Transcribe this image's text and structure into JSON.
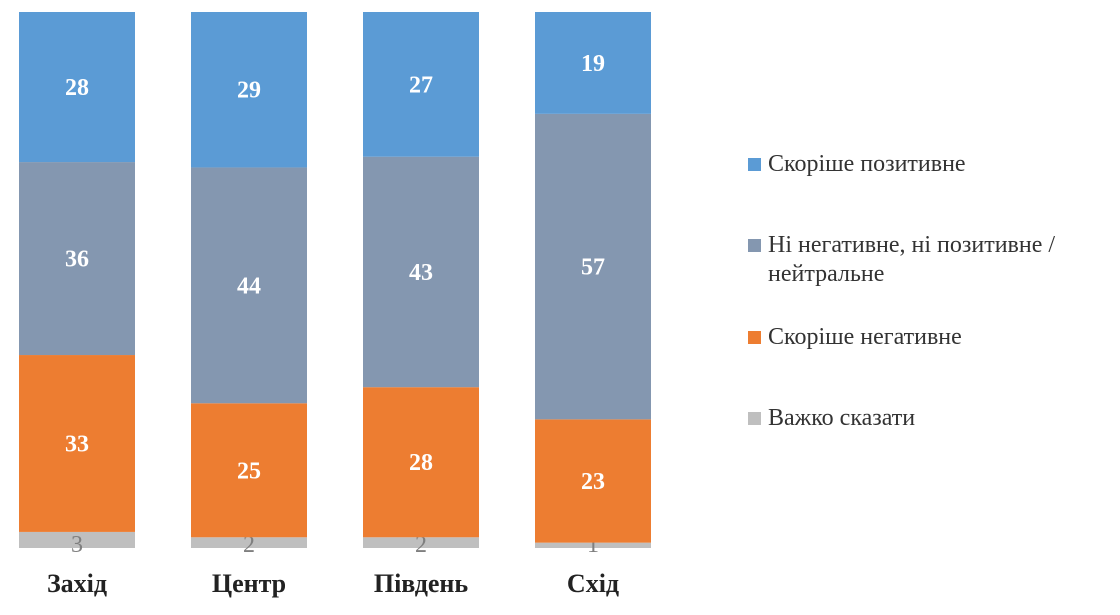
{
  "chart_data": {
    "type": "bar",
    "stacked": true,
    "normalized": true,
    "categories": [
      "Захід",
      "Центр",
      "Південь",
      "Схід"
    ],
    "series": [
      {
        "name": "Важко сказати",
        "color": "#bfbfbf",
        "values": [
          3,
          2,
          2,
          1
        ]
      },
      {
        "name": "Скоріше негативне",
        "color": "#ed7d31",
        "values": [
          33,
          25,
          28,
          23
        ]
      },
      {
        "name": "Ні негативне, ні позитивне / нейтральне",
        "color": "#8497b0",
        "values": [
          36,
          44,
          43,
          57
        ]
      },
      {
        "name": "Скоріше позитивне",
        "color": "#5b9bd5",
        "values": [
          28,
          29,
          27,
          19
        ]
      }
    ],
    "legend_order": [
      3,
      2,
      1,
      0
    ],
    "legend_position": "right",
    "grid": false,
    "title": "",
    "xlabel": "",
    "ylabel": ""
  }
}
